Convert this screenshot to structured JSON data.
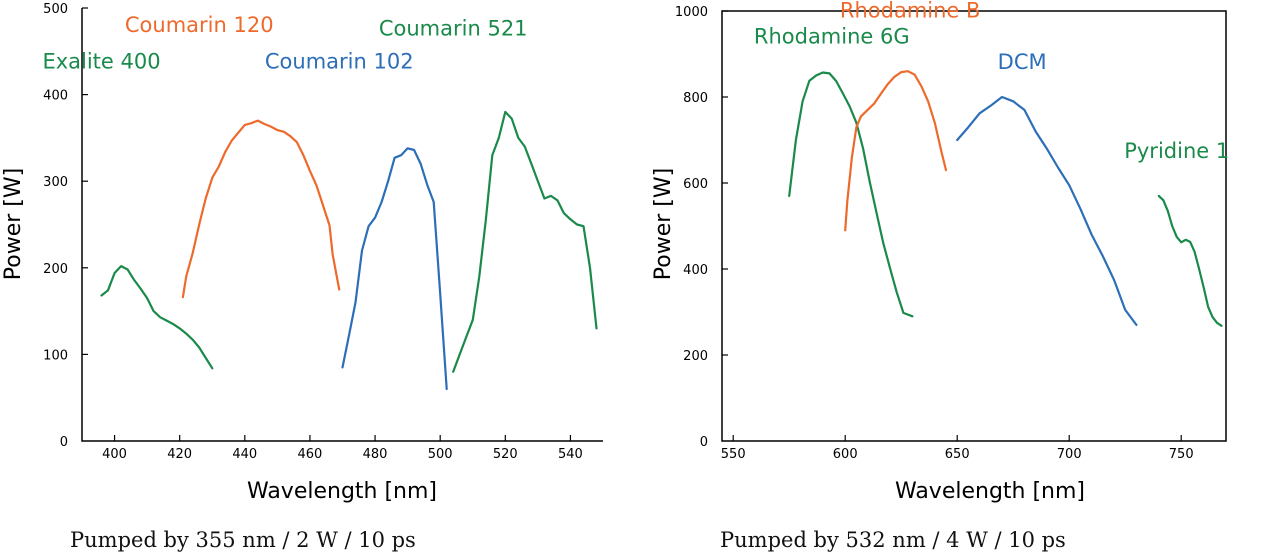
{
  "chart_data": [
    {
      "type": "line",
      "caption": "Pumped by 355 nm / 2 W / 10 ps",
      "xlabel": "Wavelength [nm]",
      "ylabel": "Power [W]",
      "xlim": [
        390,
        550
      ],
      "ylim": [
        0,
        500
      ],
      "xticks": [
        400,
        420,
        440,
        460,
        480,
        500,
        520,
        540
      ],
      "yticks": [
        0,
        100,
        200,
        300,
        400,
        500
      ],
      "x_tick_labels": [
        "400",
        "420",
        "440",
        "460",
        "480",
        "500",
        "520",
        "540"
      ],
      "y_tick_labels": [
        "0",
        "100",
        "200",
        "300",
        "400",
        "500"
      ],
      "grid": false,
      "series": [
        {
          "name": "Exalite 400",
          "color": "#1a8a4a",
          "x": [
            396,
            398,
            400,
            402,
            404,
            406,
            408,
            410,
            412,
            414,
            416,
            418,
            420,
            422,
            424,
            426,
            430
          ],
          "y": [
            168,
            174,
            194,
            202,
            198,
            186,
            176,
            165,
            150,
            143,
            139,
            135,
            130,
            124,
            117,
            108,
            84
          ]
        },
        {
          "name": "Coumarin 120",
          "color": "#ee6a2c",
          "x": [
            421,
            422,
            424,
            426,
            428,
            430,
            432,
            434,
            436,
            438,
            440,
            442,
            444,
            446,
            448,
            450,
            452,
            454,
            456,
            458,
            460,
            462,
            464,
            466,
            467,
            469
          ],
          "y": [
            166,
            190,
            217,
            250,
            280,
            304,
            317,
            334,
            347,
            356,
            365,
            367,
            370,
            366,
            363,
            359,
            357,
            352,
            345,
            330,
            312,
            295,
            272,
            249,
            215,
            175
          ]
        },
        {
          "name": "Coumarin 102",
          "color": "#2c6eb8",
          "x": [
            470,
            472,
            474,
            476,
            478,
            480,
            482,
            484,
            486,
            488,
            490,
            492,
            494,
            496,
            498,
            500,
            502
          ],
          "y": [
            85,
            122,
            160,
            220,
            248,
            258,
            276,
            300,
            327,
            330,
            338,
            336,
            320,
            296,
            276,
            170,
            60
          ]
        },
        {
          "name": "Coumarin 521",
          "color": "#1a8a4a",
          "x": [
            504,
            506,
            508,
            510,
            512,
            514,
            516,
            518,
            520,
            522,
            524,
            526,
            528,
            530,
            532,
            534,
            536,
            538,
            540,
            542,
            544,
            546,
            548
          ],
          "y": [
            80,
            100,
            120,
            140,
            190,
            255,
            330,
            350,
            380,
            372,
            350,
            340,
            320,
            300,
            280,
            283,
            278,
            263,
            256,
            250,
            248,
            200,
            130
          ]
        }
      ],
      "annotations": [
        {
          "text": "Exalite 400",
          "x": 396,
          "y": 430,
          "color": "#1a8a4a"
        },
        {
          "text": "Coumarin 120",
          "x": 426,
          "y": 472,
          "color": "#ee6a2c"
        },
        {
          "text": "Coumarin 102",
          "x": 469,
          "y": 430,
          "color": "#2c6eb8"
        },
        {
          "text": "Coumarin 521",
          "x": 504,
          "y": 468,
          "color": "#1a8a4a"
        }
      ]
    },
    {
      "type": "line",
      "caption": "Pumped by 532 nm / 4 W / 10 ps",
      "xlabel": "Wavelength [nm]",
      "ylabel": "Power [W]",
      "xlim": [
        545,
        770
      ],
      "ylim": [
        0,
        1000
      ],
      "xticks": [
        550,
        600,
        650,
        700,
        750
      ],
      "yticks": [
        0,
        200,
        400,
        600,
        800,
        1000
      ],
      "x_tick_labels": [
        "550",
        "600",
        "650",
        "700",
        "750"
      ],
      "y_tick_labels": [
        "0",
        "200",
        "400",
        "600",
        "800",
        "1000"
      ],
      "grid": false,
      "series": [
        {
          "name": "Rhodamine 6G",
          "color": "#1a8a4a",
          "x": [
            575,
            578,
            581,
            584,
            587,
            590,
            593,
            596,
            599,
            602,
            605,
            608,
            611,
            614,
            617,
            620,
            623,
            626,
            630
          ],
          "y": [
            570,
            700,
            790,
            838,
            850,
            857,
            855,
            837,
            808,
            778,
            740,
            680,
            602,
            530,
            460,
            402,
            346,
            298,
            290
          ]
        },
        {
          "name": "Rhodamine B",
          "color": "#ee6a2c",
          "x": [
            600,
            601,
            603,
            605,
            607,
            610,
            613,
            616,
            619,
            622,
            625,
            628,
            631,
            634,
            637,
            640,
            643,
            645
          ],
          "y": [
            490,
            560,
            660,
            730,
            755,
            770,
            785,
            808,
            830,
            847,
            858,
            860,
            852,
            825,
            790,
            740,
            672,
            630
          ]
        },
        {
          "name": "DCM",
          "color": "#2c6eb8",
          "x": [
            650,
            655,
            660,
            665,
            670,
            675,
            680,
            685,
            690,
            695,
            700,
            705,
            710,
            715,
            720,
            725,
            730
          ],
          "y": [
            700,
            730,
            762,
            780,
            800,
            790,
            770,
            720,
            680,
            636,
            595,
            540,
            480,
            430,
            375,
            305,
            270
          ]
        },
        {
          "name": "Pyridine 1",
          "color": "#1a8a4a",
          "x": [
            740,
            742,
            744,
            746,
            748,
            750,
            752,
            754,
            756,
            758,
            760,
            762,
            764,
            766,
            768
          ],
          "y": [
            570,
            560,
            535,
            500,
            475,
            462,
            468,
            463,
            440,
            400,
            358,
            312,
            288,
            275,
            268
          ]
        }
      ],
      "annotations": [
        {
          "text": "Rhodamine B",
          "x": 629,
          "y": 985,
          "color": "#ee6a2c"
        },
        {
          "text": "Rhodamine 6G",
          "x": 594,
          "y": 925,
          "color": "#1a8a4a"
        },
        {
          "text": "DCM",
          "x": 679,
          "y": 865,
          "color": "#2c6eb8"
        },
        {
          "text": "Pyridine 1",
          "x": 748,
          "y": 658,
          "color": "#1a8a4a"
        }
      ]
    }
  ]
}
